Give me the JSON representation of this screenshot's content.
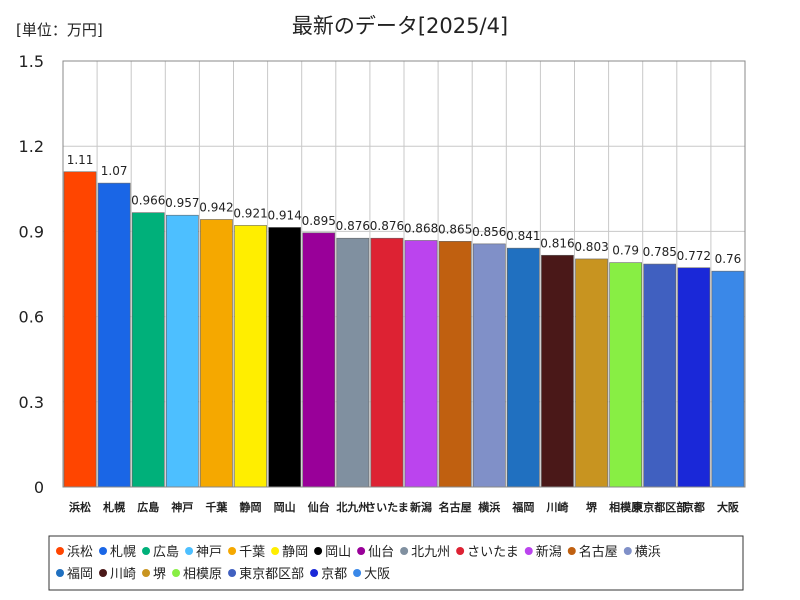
{
  "chart_data": {
    "type": "bar",
    "title": "最新のデータ[2025/4]",
    "unit_label": "[単位：万円]",
    "ylim": [
      0,
      1.5
    ],
    "yticks": [
      "0",
      "0.3",
      "0.6",
      "0.9",
      "1.2",
      "1.5"
    ],
    "ytick_values": [
      0,
      0.3,
      0.6,
      0.9,
      1.2,
      1.5
    ],
    "grid": true,
    "legend_position": "bottom",
    "categories": [
      "浜松",
      "札幌",
      "広島",
      "神戸",
      "千葉",
      "静岡",
      "岡山",
      "仙台",
      "北九州",
      "さいたま",
      "新潟",
      "名古屋",
      "横浜",
      "福岡",
      "川崎",
      "堺",
      "相模原",
      "東京都区部",
      "京都",
      "大阪"
    ],
    "values": [
      1.11,
      1.07,
      0.966,
      0.957,
      0.942,
      0.921,
      0.914,
      0.895,
      0.876,
      0.876,
      0.868,
      0.865,
      0.856,
      0.841,
      0.816,
      0.803,
      0.79,
      0.785,
      0.772,
      0.76
    ],
    "data_labels": [
      "1.11",
      "1.07",
      "0.966",
      "0.957",
      "0.942",
      "0.921",
      "0.914",
      "0.895",
      "0.876",
      "0.876",
      "0.868",
      "0.865",
      "0.856",
      "0.841",
      "0.816",
      "0.803",
      "0.79",
      "0.785",
      "0.772",
      "0.76"
    ],
    "colors": [
      "#ff4500",
      "#1a66e6",
      "#00b07a",
      "#4dbfff",
      "#f5a800",
      "#ffee00",
      "#000000",
      "#990099",
      "#8090a0",
      "#dd2233",
      "#bb44ee",
      "#c06010",
      "#8090c8",
      "#2070c0",
      "#4a1818",
      "#c89420",
      "#88ee44",
      "#4060c0",
      "#1a28d8",
      "#3a88e8"
    ]
  }
}
